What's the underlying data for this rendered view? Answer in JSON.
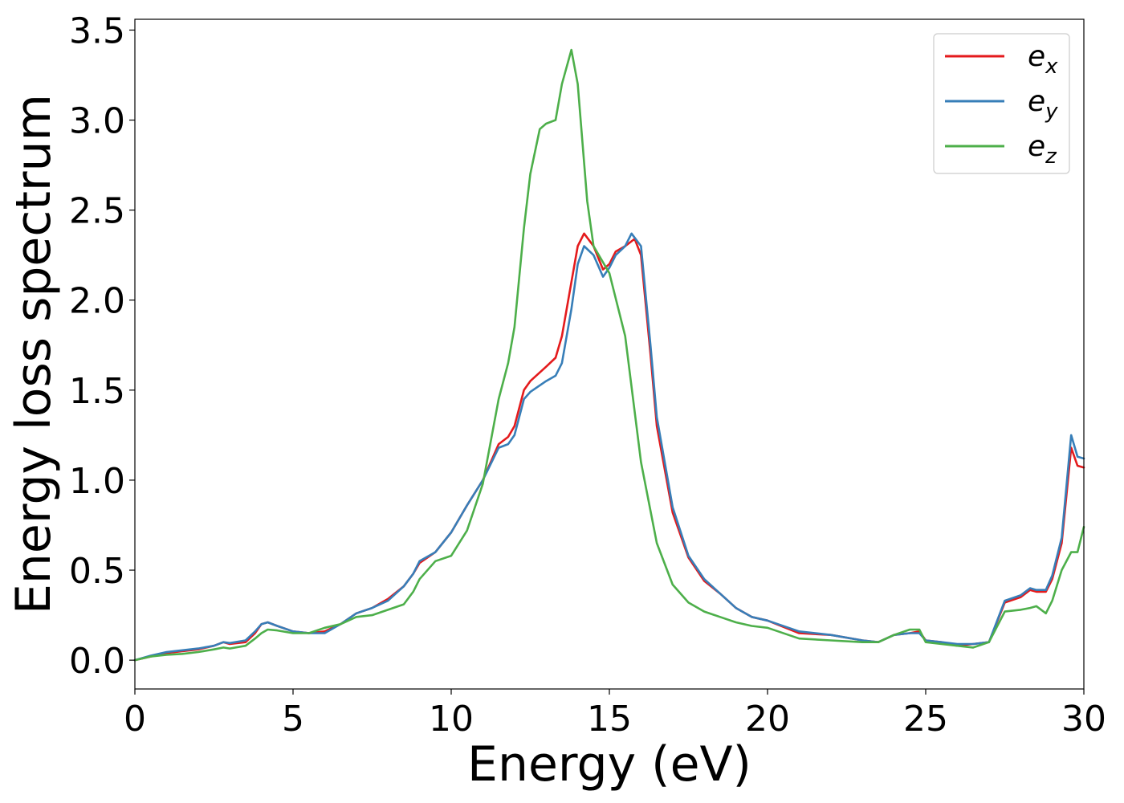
{
  "chart_data": {
    "type": "line",
    "title": "",
    "xlabel": "Energy (eV)",
    "ylabel": "Energy loss spectrum",
    "xlim": [
      0,
      30
    ],
    "ylim": [
      -0.16,
      3.56
    ],
    "xticks": [
      0,
      5,
      10,
      15,
      20,
      25,
      30
    ],
    "xtick_labels": [
      "0",
      "5",
      "10",
      "15",
      "20",
      "25",
      "30"
    ],
    "yticks": [
      0.0,
      0.5,
      1.0,
      1.5,
      2.0,
      2.5,
      3.0,
      3.5
    ],
    "ytick_labels": [
      "0.0",
      "0.5",
      "1.0",
      "1.5",
      "2.0",
      "2.5",
      "3.0",
      "3.5"
    ],
    "grid": false,
    "legend_position": "top-right",
    "series": [
      {
        "name_base": "e",
        "name_sub": "x",
        "color": "#e41a1c",
        "x": [
          0,
          0.5,
          1,
          1.5,
          2,
          2.5,
          2.8,
          3,
          3.5,
          3.8,
          4,
          4.2,
          4.5,
          5,
          5.5,
          6,
          6.5,
          7,
          7.5,
          8,
          8.5,
          8.8,
          9,
          9.5,
          10,
          10.5,
          11,
          11.5,
          11.8,
          12,
          12.3,
          12.5,
          13,
          13.3,
          13.5,
          13.8,
          14,
          14.2,
          14.5,
          14.8,
          15,
          15.2,
          15.5,
          15.8,
          16,
          16.3,
          16.5,
          17,
          17.5,
          18,
          18.5,
          19,
          19.5,
          20,
          21,
          22,
          23,
          23.5,
          24,
          24.5,
          24.8,
          25,
          25.5,
          26,
          26.5,
          27,
          27.5,
          28,
          28.3,
          28.5,
          28.8,
          29,
          29.3,
          29.6,
          29.8,
          30
        ],
        "y": [
          0,
          0.02,
          0.04,
          0.05,
          0.06,
          0.08,
          0.1,
          0.09,
          0.1,
          0.15,
          0.2,
          0.21,
          0.19,
          0.16,
          0.15,
          0.16,
          0.2,
          0.26,
          0.29,
          0.34,
          0.41,
          0.48,
          0.54,
          0.6,
          0.71,
          0.86,
          1.0,
          1.2,
          1.24,
          1.3,
          1.5,
          1.55,
          1.63,
          1.68,
          1.8,
          2.1,
          2.3,
          2.37,
          2.3,
          2.17,
          2.2,
          2.27,
          2.3,
          2.34,
          2.25,
          1.7,
          1.3,
          0.82,
          0.57,
          0.44,
          0.37,
          0.29,
          0.24,
          0.22,
          0.15,
          0.14,
          0.11,
          0.1,
          0.14,
          0.15,
          0.16,
          0.11,
          0.1,
          0.08,
          0.09,
          0.1,
          0.32,
          0.35,
          0.39,
          0.38,
          0.38,
          0.45,
          0.65,
          1.18,
          1.08,
          1.07
        ]
      },
      {
        "name_base": "e",
        "name_sub": "y",
        "color": "#377eb8",
        "x": [
          0,
          0.5,
          1,
          1.5,
          2,
          2.5,
          2.8,
          3,
          3.5,
          3.8,
          4,
          4.2,
          4.5,
          5,
          5.5,
          6,
          6.5,
          7,
          7.5,
          8,
          8.5,
          8.8,
          9,
          9.5,
          10,
          10.5,
          11,
          11.5,
          11.8,
          12,
          12.3,
          12.5,
          13,
          13.3,
          13.5,
          13.8,
          14,
          14.2,
          14.5,
          14.8,
          15,
          15.2,
          15.5,
          15.7,
          16,
          16.3,
          16.5,
          17,
          17.5,
          18,
          18.5,
          19,
          19.5,
          20,
          21,
          22,
          23,
          23.5,
          24,
          24.5,
          24.8,
          25,
          25.5,
          26,
          26.5,
          27,
          27.5,
          28,
          28.3,
          28.5,
          28.8,
          29,
          29.3,
          29.6,
          29.8,
          30
        ],
        "y": [
          0,
          0.025,
          0.045,
          0.055,
          0.065,
          0.08,
          0.1,
          0.095,
          0.11,
          0.16,
          0.2,
          0.21,
          0.19,
          0.16,
          0.15,
          0.15,
          0.2,
          0.26,
          0.29,
          0.33,
          0.41,
          0.48,
          0.55,
          0.6,
          0.71,
          0.86,
          1.0,
          1.18,
          1.2,
          1.25,
          1.45,
          1.49,
          1.55,
          1.58,
          1.65,
          1.95,
          2.2,
          2.3,
          2.25,
          2.13,
          2.18,
          2.25,
          2.3,
          2.37,
          2.3,
          1.75,
          1.35,
          0.85,
          0.58,
          0.45,
          0.37,
          0.29,
          0.24,
          0.22,
          0.16,
          0.14,
          0.11,
          0.1,
          0.14,
          0.15,
          0.15,
          0.11,
          0.1,
          0.09,
          0.09,
          0.1,
          0.33,
          0.36,
          0.4,
          0.39,
          0.39,
          0.47,
          0.68,
          1.25,
          1.13,
          1.12
        ]
      },
      {
        "name_base": "e",
        "name_sub": "z",
        "color": "#4daf4a",
        "x": [
          0,
          0.5,
          1,
          1.5,
          2,
          2.5,
          2.8,
          3,
          3.5,
          3.8,
          4,
          4.2,
          4.5,
          5,
          5.5,
          6,
          6.5,
          7,
          7.5,
          8,
          8.5,
          8.8,
          9,
          9.5,
          10,
          10.5,
          11,
          11.5,
          11.8,
          12,
          12.3,
          12.5,
          12.8,
          13,
          13.3,
          13.5,
          13.8,
          14,
          14.3,
          14.5,
          15,
          15.5,
          16,
          16.5,
          17,
          17.5,
          18,
          18.5,
          19,
          19.5,
          20,
          21,
          22,
          23,
          23.5,
          24,
          24.5,
          24.8,
          25,
          25.5,
          26,
          26.5,
          27,
          27.5,
          28,
          28.3,
          28.5,
          28.8,
          29,
          29.3,
          29.6,
          29.8,
          30
        ],
        "y": [
          0,
          0.02,
          0.03,
          0.035,
          0.045,
          0.06,
          0.07,
          0.065,
          0.08,
          0.12,
          0.15,
          0.17,
          0.165,
          0.15,
          0.15,
          0.18,
          0.2,
          0.24,
          0.25,
          0.28,
          0.31,
          0.38,
          0.45,
          0.55,
          0.58,
          0.72,
          0.98,
          1.45,
          1.65,
          1.85,
          2.4,
          2.7,
          2.95,
          2.98,
          3.0,
          3.2,
          3.39,
          3.2,
          2.55,
          2.3,
          2.15,
          1.8,
          1.1,
          0.65,
          0.42,
          0.32,
          0.27,
          0.24,
          0.21,
          0.19,
          0.18,
          0.12,
          0.11,
          0.1,
          0.1,
          0.14,
          0.17,
          0.17,
          0.1,
          0.09,
          0.08,
          0.07,
          0.1,
          0.27,
          0.28,
          0.29,
          0.3,
          0.26,
          0.33,
          0.5,
          0.6,
          0.6,
          0.74
        ]
      }
    ]
  }
}
